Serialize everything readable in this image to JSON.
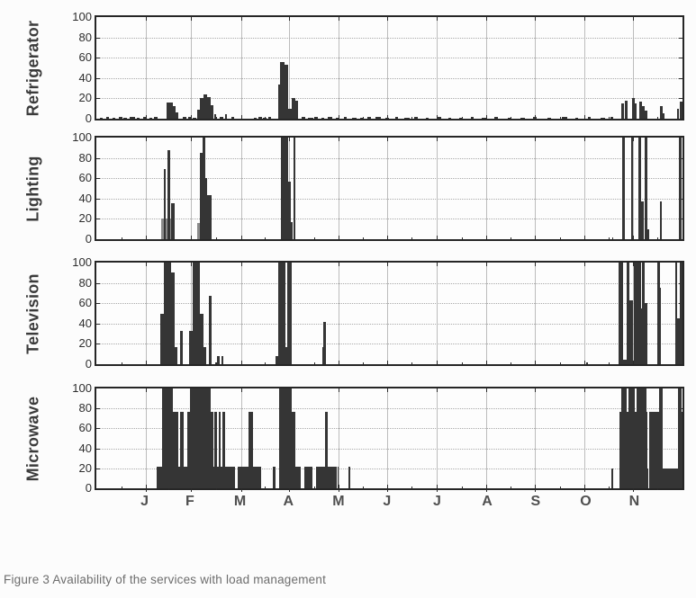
{
  "figure": {
    "caption": "Figure 3 Availability of the services with load management"
  },
  "colors": {
    "bar_dark": "#353535",
    "bar_gray": "#8a8a8a",
    "grid": "#bcbcbc",
    "axis": "#262626",
    "background": "#fcfcfc"
  },
  "x_axis": {
    "labels": [
      "J",
      "F",
      "M",
      "A",
      "M",
      "J",
      "J",
      "A",
      "S",
      "O",
      "N"
    ],
    "tick_days": [
      31,
      59,
      90,
      120,
      151,
      181,
      212,
      243,
      273,
      304,
      334
    ],
    "minor_tick_days": [
      15.5,
      45,
      74.5,
      105,
      135.5,
      166,
      196.5,
      227.5,
      258,
      288.5,
      319,
      349.5
    ],
    "range_days": [
      0,
      365
    ]
  },
  "chart_data": [
    {
      "type": "bar",
      "ylabel": "Refrigerator",
      "ylim": [
        0,
        100
      ],
      "yticks": [
        0,
        20,
        40,
        60,
        80,
        100
      ],
      "grid": true,
      "bars": [
        [
          2,
          2,
          1
        ],
        [
          6,
          2,
          1.5
        ],
        [
          10,
          2,
          1
        ],
        [
          14,
          2,
          1.5
        ],
        [
          17,
          2,
          1
        ],
        [
          21,
          3,
          2
        ],
        [
          25,
          2,
          1
        ],
        [
          29,
          2,
          1.5
        ],
        [
          33,
          2,
          1
        ],
        [
          36,
          2,
          2
        ],
        [
          44,
          1.8,
          16
        ],
        [
          46,
          1.6,
          16
        ],
        [
          47.8,
          1.8,
          12
        ],
        [
          49.6,
          1.2,
          6
        ],
        [
          54,
          2,
          2
        ],
        [
          57,
          2,
          1.5
        ],
        [
          60,
          2,
          1
        ],
        [
          63,
          1.4,
          9
        ],
        [
          64.6,
          2,
          20
        ],
        [
          66.6,
          2.4,
          24
        ],
        [
          69,
          2,
          21
        ],
        [
          71,
          2,
          13
        ],
        [
          73.4,
          1,
          4
        ],
        [
          77,
          2,
          2
        ],
        [
          80,
          1.5,
          4
        ],
        [
          84,
          2,
          1.5
        ],
        [
          98,
          2,
          1
        ],
        [
          101,
          2,
          2
        ],
        [
          104,
          2,
          1
        ],
        [
          107,
          2,
          1.5
        ],
        [
          113,
          1.4,
          34
        ],
        [
          114.6,
          2.4,
          56
        ],
        [
          117.4,
          2,
          53
        ],
        [
          119.4,
          2,
          10
        ],
        [
          121.4,
          2.4,
          20
        ],
        [
          123.8,
          1.6,
          18
        ],
        [
          128,
          2,
          2
        ],
        [
          132,
          3,
          1
        ],
        [
          136,
          2,
          1.5
        ],
        [
          140,
          2,
          1
        ],
        [
          144,
          3,
          2
        ],
        [
          149,
          2,
          1
        ],
        [
          154,
          2,
          1.5
        ],
        [
          159,
          3,
          1
        ],
        [
          164,
          2,
          1
        ],
        [
          169,
          2,
          1.5
        ],
        [
          174,
          3,
          2
        ],
        [
          180,
          2,
          1
        ],
        [
          186,
          2,
          1.5
        ],
        [
          192,
          3,
          1
        ],
        [
          198,
          2,
          2
        ],
        [
          205,
          2,
          1
        ],
        [
          212,
          3,
          1.5
        ],
        [
          219,
          2,
          1
        ],
        [
          226,
          2,
          1
        ],
        [
          233,
          2,
          1.5
        ],
        [
          240,
          3,
          1
        ],
        [
          248,
          2,
          1.5
        ],
        [
          256,
          2,
          1
        ],
        [
          264,
          3,
          1
        ],
        [
          272,
          2,
          1.5
        ],
        [
          281,
          2,
          1
        ],
        [
          290,
          3,
          1.5
        ],
        [
          298,
          2,
          1
        ],
        [
          306,
          2,
          2
        ],
        [
          314,
          3,
          1
        ],
        [
          320,
          2,
          1.5
        ],
        [
          327,
          1.7,
          15
        ],
        [
          328.9,
          1.8,
          18
        ],
        [
          333.5,
          1.6,
          20
        ],
        [
          335.2,
          1.2,
          15
        ],
        [
          338,
          1.8,
          17
        ],
        [
          339.8,
          1.6,
          12
        ],
        [
          341.5,
          1.4,
          8
        ],
        [
          351.2,
          1.6,
          12
        ],
        [
          352.8,
          1.2,
          5
        ],
        [
          361.4,
          1.6,
          10
        ],
        [
          363.2,
          1.8,
          17
        ]
      ]
    },
    {
      "type": "bar",
      "ylabel": "Lighting",
      "ylim": [
        0,
        100
      ],
      "yticks": [
        0,
        20,
        40,
        60,
        80,
        100
      ],
      "grid": true,
      "gray_bars": [
        [
          40.6,
          7.9,
          20
        ],
        [
          63,
          1.7,
          16
        ]
      ],
      "bars": [
        [
          42,
          1.4,
          69
        ],
        [
          44.4,
          1.4,
          88
        ],
        [
          46.3,
          2.4,
          35
        ],
        [
          64.3,
          1.9,
          85
        ],
        [
          66.2,
          1.6,
          100
        ],
        [
          67.8,
          1.4,
          60
        ],
        [
          69.2,
          2.3,
          43
        ],
        [
          114.8,
          4.7,
          100
        ],
        [
          119.5,
          1.5,
          57
        ],
        [
          121,
          1,
          17
        ],
        [
          122.6,
          1.4,
          100
        ],
        [
          321,
          1,
          2
        ],
        [
          327.5,
          1.5,
          100
        ],
        [
          333,
          1.4,
          100
        ],
        [
          337.8,
          1.3,
          100
        ],
        [
          339.4,
          1.6,
          37
        ],
        [
          341.5,
          1.7,
          100
        ],
        [
          343.2,
          1.3,
          10
        ],
        [
          350.8,
          1.1,
          37
        ],
        [
          362.9,
          1.4,
          100
        ]
      ]
    },
    {
      "type": "bar",
      "ylabel": "Television",
      "ylim": [
        0,
        100
      ],
      "yticks": [
        0,
        20,
        40,
        60,
        80,
        100
      ],
      "grid": true,
      "bars": [
        [
          39.6,
          2.3,
          50
        ],
        [
          41.9,
          4.6,
          100
        ],
        [
          46.5,
          2.3,
          90
        ],
        [
          48.8,
          1.4,
          17
        ],
        [
          52.3,
          1.4,
          33
        ],
        [
          58,
          2.2,
          33
        ],
        [
          60.2,
          4.4,
          100
        ],
        [
          64.6,
          2.4,
          50
        ],
        [
          67,
          1.4,
          17
        ],
        [
          70.3,
          1.4,
          67
        ],
        [
          73.8,
          0.9,
          2
        ],
        [
          75.4,
          1.4,
          8
        ],
        [
          77.8,
          1.4,
          8
        ],
        [
          111.3,
          1.7,
          8
        ],
        [
          113,
          4.7,
          100
        ],
        [
          117.7,
          1.3,
          17
        ],
        [
          119,
          2.7,
          100
        ],
        [
          140.5,
          1,
          17
        ],
        [
          141.5,
          1.3,
          42
        ],
        [
          305,
          1,
          2
        ],
        [
          325,
          2.8,
          100
        ],
        [
          328,
          2.3,
          4
        ],
        [
          330.4,
          1.7,
          100
        ],
        [
          332.1,
          1.9,
          63
        ],
        [
          335,
          4,
          100
        ],
        [
          339,
          1,
          55
        ],
        [
          340,
          1.6,
          100
        ],
        [
          341.6,
          1.6,
          60
        ],
        [
          349.3,
          1.9,
          100
        ],
        [
          351.2,
          0.6,
          75
        ],
        [
          360.3,
          1.4,
          100
        ],
        [
          361.7,
          1.6,
          45
        ],
        [
          363.3,
          1.6,
          100
        ]
      ]
    },
    {
      "type": "bar",
      "ylabel": "Microwave",
      "ylim": [
        0,
        100
      ],
      "yticks": [
        0,
        20,
        40,
        60,
        80,
        100
      ],
      "grid": true,
      "bars": [
        [
          37.7,
          48.7,
          22
        ],
        [
          88.2,
          14.5,
          22
        ],
        [
          40.9,
          6.5,
          100
        ],
        [
          47.4,
          3.6,
          77
        ],
        [
          51.9,
          2.5,
          77
        ],
        [
          56.5,
          1.6,
          77
        ],
        [
          58.1,
          13.1,
          100
        ],
        [
          71.2,
          1.8,
          77
        ],
        [
          73.5,
          1.4,
          77
        ],
        [
          76.2,
          1.3,
          77
        ],
        [
          78.6,
          1.8,
          77
        ],
        [
          94.8,
          2.6,
          77
        ],
        [
          110,
          1.5,
          22
        ],
        [
          113.9,
          7.8,
          100
        ],
        [
          121.7,
          2.2,
          77
        ],
        [
          123.9,
          3.6,
          22
        ],
        [
          129.7,
          4.6,
          22
        ],
        [
          136.6,
          5.6,
          22
        ],
        [
          142.2,
          1.8,
          77
        ],
        [
          144,
          5.6,
          22
        ],
        [
          150,
          1,
          22
        ],
        [
          157,
          1.2,
          22
        ],
        [
          320.5,
          1.5,
          20
        ],
        [
          325.5,
          1.5,
          77
        ],
        [
          327,
          3,
          100
        ],
        [
          330,
          1.2,
          77
        ],
        [
          331.2,
          4,
          100
        ],
        [
          335.3,
          1.1,
          77
        ],
        [
          336.4,
          6,
          100
        ],
        [
          342.4,
          1,
          77
        ],
        [
          343.4,
          0.5,
          20
        ],
        [
          344,
          6.6,
          77
        ],
        [
          350.6,
          2,
          100
        ],
        [
          352.6,
          9.7,
          20
        ],
        [
          362.3,
          2.2,
          100
        ],
        [
          364.5,
          0.5,
          77
        ]
      ]
    }
  ]
}
